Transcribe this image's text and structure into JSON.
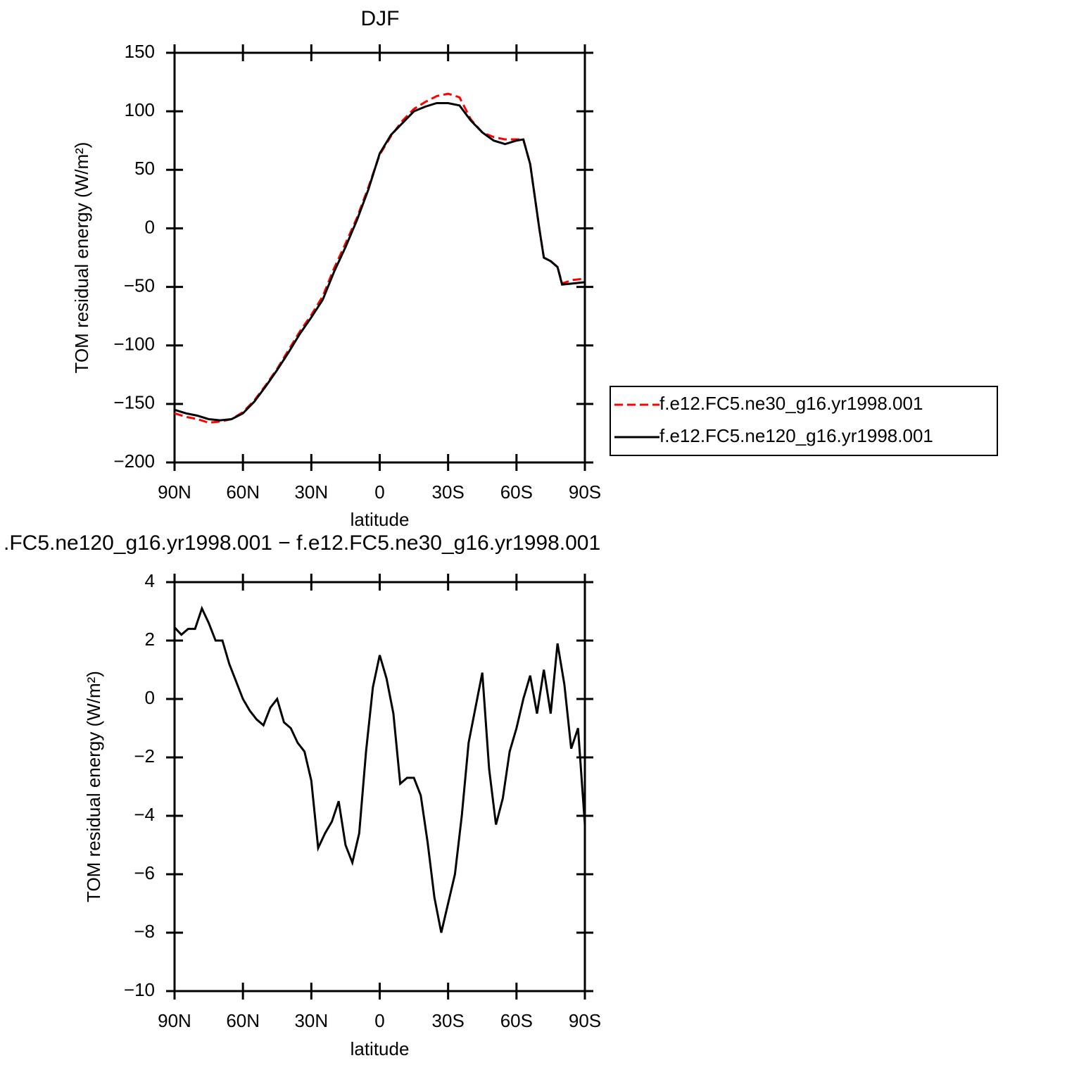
{
  "chart_data": [
    {
      "type": "line",
      "title": "DJF",
      "xlabel": "latitude",
      "ylabel": "TOM residual energy (W/m²)",
      "x": [
        90,
        85,
        80,
        75,
        70,
        65,
        60,
        55,
        50,
        45,
        40,
        35,
        30,
        25,
        20,
        15,
        10,
        5,
        0,
        -5,
        -10,
        -15,
        -20,
        -25,
        -30,
        -35,
        -40,
        -45,
        -50,
        -55,
        -60,
        -63,
        -66,
        -70,
        -72,
        -75,
        -78,
        -80,
        -85,
        -90
      ],
      "series": [
        {
          "name": "f.e12.FC5.ne30_g16.yr1998.001",
          "color": "#ff0000",
          "dash": true,
          "values": [
            -158,
            -161,
            -163,
            -166,
            -165,
            -163,
            -157,
            -147,
            -134,
            -120,
            -104,
            -88,
            -74,
            -58,
            -34,
            -13,
            9,
            35,
            63,
            79,
            92,
            102,
            108,
            113,
            115,
            112,
            93,
            82,
            78,
            76,
            76,
            76,
            55,
            0,
            -25,
            -28,
            -33,
            -47,
            -44,
            -43
          ]
        },
        {
          "name": "f.e12.FC5.ne120_g16.yr1998.001",
          "color": "#000000",
          "dash": false,
          "values": [
            -155,
            -158,
            -160,
            -163,
            -164,
            -163,
            -158,
            -148,
            -135,
            -121,
            -106,
            -90,
            -76,
            -61,
            -37,
            -16,
            7,
            33,
            64,
            80,
            90,
            100,
            104,
            107,
            107,
            105,
            92,
            82,
            75,
            72,
            75,
            76,
            55,
            0,
            -25,
            -28,
            -33,
            -48,
            -47,
            -46
          ]
        }
      ],
      "xlim": [
        90,
        -90
      ],
      "xticks": [
        {
          "value": 90,
          "label": "90N"
        },
        {
          "value": 60,
          "label": "60N"
        },
        {
          "value": 30,
          "label": "30N"
        },
        0,
        {
          "value": -30,
          "label": "30S"
        },
        {
          "value": -60,
          "label": "60S"
        },
        {
          "value": -90,
          "label": "90S"
        }
      ],
      "ylim": [
        -200,
        150
      ],
      "yticks": [
        {
          "value": -200,
          "label": "−200"
        },
        {
          "value": -150,
          "label": "−150"
        },
        {
          "value": -100,
          "label": "−100"
        },
        {
          "value": -50,
          "label": "−50"
        },
        0,
        50,
        100,
        150
      ],
      "legend": "outside-right"
    },
    {
      "type": "line",
      "title": ".FC5.ne120_g16.yr1998.001 − f.e12.FC5.ne30_g16.yr1998.001",
      "xlabel": "latitude",
      "ylabel": "TOM residual energy (W/m²)",
      "x": [
        90,
        87,
        84,
        81,
        78,
        75,
        72,
        69,
        66,
        63,
        60,
        57,
        54,
        51,
        48,
        45,
        42,
        39,
        36,
        33,
        30,
        27,
        24,
        21,
        18,
        15,
        12,
        9,
        6,
        3,
        0,
        -3,
        -6,
        -9,
        -12,
        -15,
        -18,
        -21,
        -24,
        -27,
        -30,
        -33,
        -36,
        -39,
        -42,
        -45,
        -48,
        -51,
        -54,
        -57,
        -60,
        -63,
        -66,
        -69,
        -72,
        -75,
        -78,
        -81,
        -84,
        -87,
        -90
      ],
      "series": [
        {
          "color": "#000000",
          "dash": false,
          "values": [
            2.45,
            2.2,
            2.4,
            2.4,
            3.1,
            2.6,
            2.0,
            2.0,
            1.2,
            0.6,
            0.0,
            -0.4,
            -0.7,
            -0.9,
            -0.3,
            0.0,
            -0.8,
            -1.0,
            -1.5,
            -1.8,
            -2.8,
            -5.1,
            -4.6,
            -4.2,
            -3.5,
            -5.0,
            -5.6,
            -4.6,
            -1.8,
            0.4,
            1.5,
            0.7,
            -0.5,
            -2.9,
            -2.7,
            -2.7,
            -3.3,
            -4.9,
            -6.8,
            -8.0,
            -7.0,
            -6.0,
            -4.0,
            -1.5,
            -0.3,
            0.9,
            -2.4,
            -4.3,
            -3.4,
            -1.8,
            -1.0,
            0.0,
            0.8,
            -0.5,
            1.0,
            -0.5,
            1.9,
            0.5,
            -1.7,
            -1.0,
            -4.3
          ]
        }
      ],
      "xlim": [
        90,
        -90
      ],
      "xticks": [
        {
          "value": 90,
          "label": "90N"
        },
        {
          "value": 60,
          "label": "60N"
        },
        {
          "value": 30,
          "label": "30N"
        },
        0,
        {
          "value": -30,
          "label": "30S"
        },
        {
          "value": -60,
          "label": "60S"
        },
        {
          "value": -90,
          "label": "90S"
        }
      ],
      "ylim": [
        -10,
        4
      ],
      "yticks": [
        {
          "value": -10,
          "label": "−10"
        },
        {
          "value": -8,
          "label": "−8"
        },
        {
          "value": -6,
          "label": "−6"
        },
        {
          "value": -4,
          "label": "−4"
        },
        {
          "value": -2,
          "label": "−2"
        },
        0,
        2,
        4
      ]
    }
  ]
}
